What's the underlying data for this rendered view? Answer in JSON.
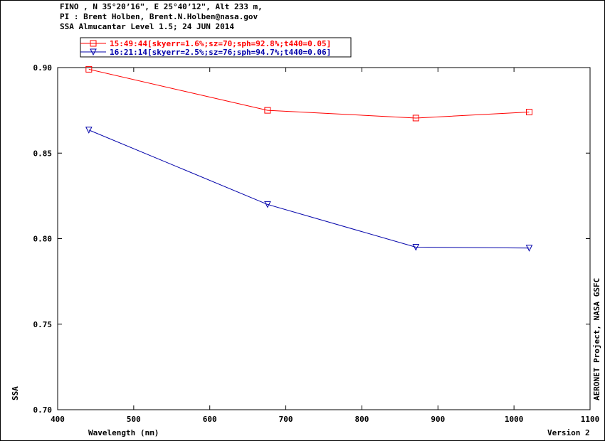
{
  "header": {
    "line1": "FINO , N 35°20’16\", E 25°40’12\", Alt 233 m,",
    "line2": "PI : Brent Holben, Brent.N.Holben@nasa.gov",
    "line3": "SSA Almucantar Level 1.5; 24 JUN 2014"
  },
  "side_label": "AERONET Project, NASA GSFC",
  "version": "Version 2",
  "chart_data": {
    "type": "line",
    "title": "SSA Almucantar Level 1.5; 24 JUN 2014",
    "xlabel": "Wavelength (nm)",
    "ylabel": "SSA",
    "xlim": [
      400,
      1100
    ],
    "ylim": [
      0.7,
      0.9
    ],
    "xticks": [
      "400",
      "500",
      "600",
      "700",
      "800",
      "900",
      "1000",
      "1100"
    ],
    "yticks": [
      "0.90",
      "0.85",
      "0.80",
      "0.75",
      "0.70"
    ],
    "legend_position": "top-left",
    "grid": false,
    "x": [
      441,
      676,
      871,
      1020
    ],
    "series": [
      {
        "name": "15:49:44[skyerr=1.6%;sz=70;sph=92.8%;t440=0.05]",
        "color": "#ff0000",
        "marker": "square",
        "values": [
          0.899,
          0.875,
          0.8705,
          0.874
        ]
      },
      {
        "name": "16:21:14[skyerr=2.5%;sz=76;sph=94.7%;t440=0.06]",
        "color": "#0000aa",
        "marker": "triangle-down",
        "values": [
          0.8635,
          0.82,
          0.795,
          0.7945
        ]
      }
    ]
  }
}
